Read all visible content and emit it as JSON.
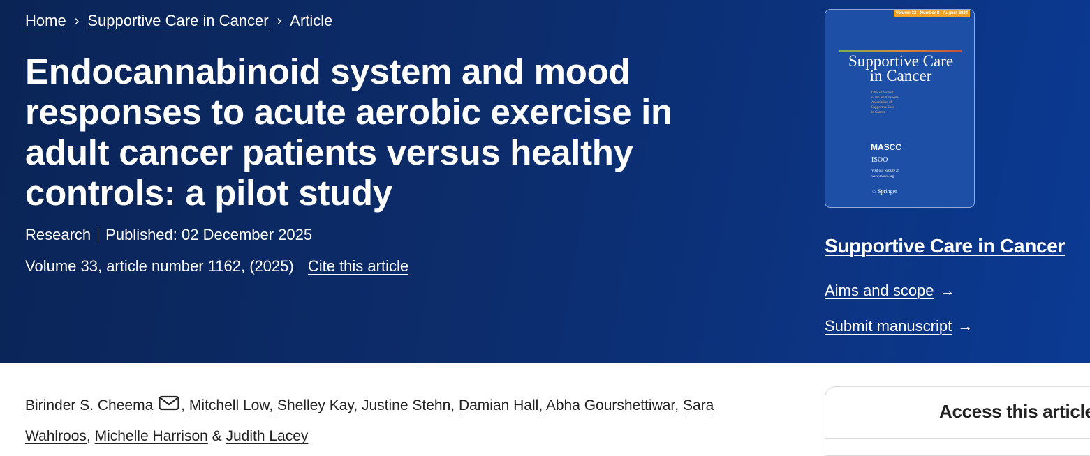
{
  "breadcrumb": {
    "items": [
      {
        "label": "Home"
      },
      {
        "label": "Supportive Care in Cancer"
      },
      {
        "label": "Article"
      }
    ],
    "separator": "›"
  },
  "article": {
    "title": "Endocannabinoid system and mood responses to acute aerobic exercise in adult cancer patients versus healthy controls: a pilot study",
    "type": "Research",
    "published": "Published: 02 December 2025",
    "volume_info": "Volume 33, article number 1162, (2025)",
    "cite_label": "Cite this article"
  },
  "journal": {
    "name": "Supportive Care in Cancer",
    "cover": {
      "tag": "Volume 32 · Number 8 · August 2024",
      "title": "Supportive Care in Cancer",
      "subtitle": "Official Journal of the Multinational Association of Supportive Care in Cancer",
      "mascc": "MASCC",
      "isoo": "ISOO",
      "visit": "Visit our website at www.mascc.org",
      "publisher": "Springer"
    },
    "links": [
      {
        "label": "Aims and scope"
      },
      {
        "label": "Submit manuscript"
      }
    ]
  },
  "authors": [
    {
      "name": "Birinder S. Cheema",
      "email_icon": true
    },
    {
      "name": "Mitchell Low"
    },
    {
      "name": "Shelley Kay"
    },
    {
      "name": "Justine Stehn"
    },
    {
      "name": "Damian Hall"
    },
    {
      "name": "Abha Gourshettiwar"
    },
    {
      "name": "Sara Wahlroos"
    },
    {
      "name": "Michelle Harrison"
    },
    {
      "name": "Judith Lacey"
    }
  ],
  "authors_separator": ", ",
  "authors_last_joiner": " & ",
  "access": {
    "title": "Access this article"
  },
  "colors": {
    "hero_start": "#0a2456",
    "hero_end": "#0b3a93",
    "cover_blue": "#1d4fa6",
    "cover_tag": "#f0a023"
  }
}
